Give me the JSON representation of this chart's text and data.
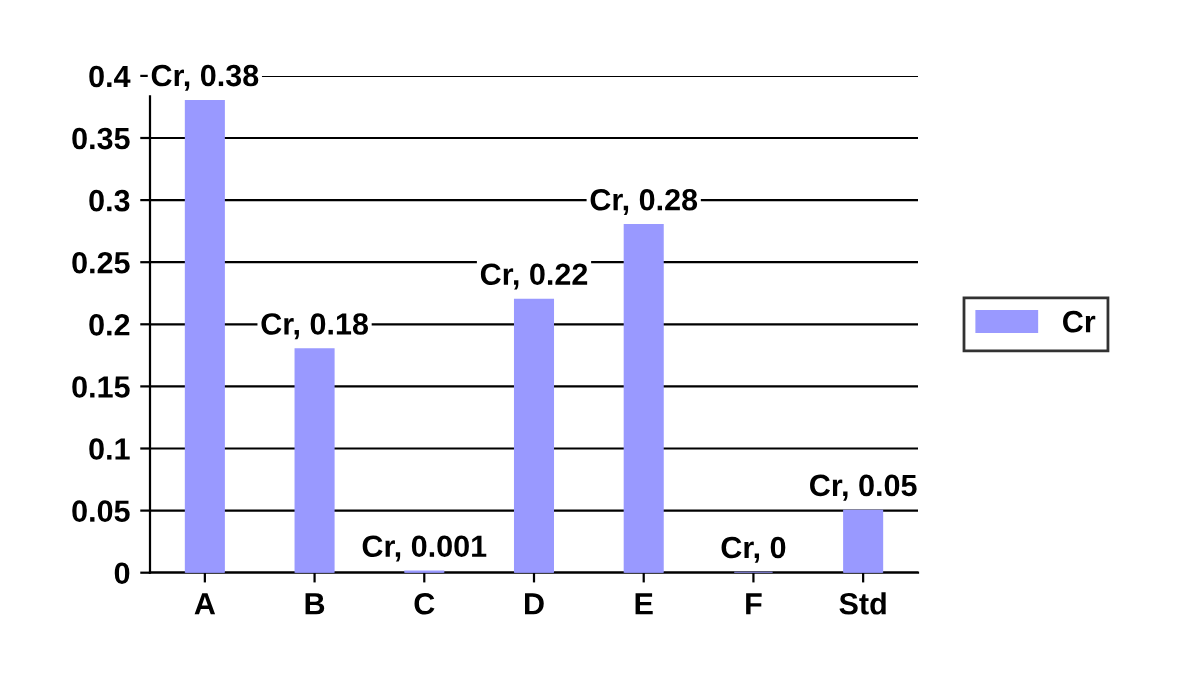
{
  "chart_data": {
    "type": "bar",
    "categories": [
      "A",
      "B",
      "C",
      "D",
      "E",
      "F",
      "Std"
    ],
    "series": [
      {
        "name": "Cr",
        "color": "#9999ff",
        "values": [
          0.38,
          0.18,
          0.001,
          0.22,
          0.28,
          0,
          0.05
        ],
        "value_labels": [
          "Cr, 0.38",
          "Cr, 0.18",
          "Cr, 0.001",
          "Cr, 0.22",
          "Cr, 0.28",
          "Cr, 0",
          "Cr, 0.05"
        ]
      }
    ],
    "ylim": [
      0,
      0.4
    ],
    "yticks": [
      0,
      0.05,
      0.1,
      0.15,
      0.2,
      0.25,
      0.3,
      0.35,
      0.4
    ],
    "grid": "y",
    "legend": "right"
  }
}
